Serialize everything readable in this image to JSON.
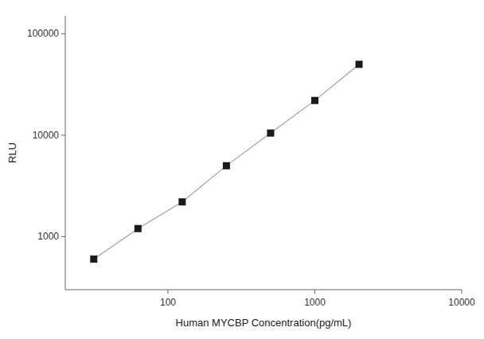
{
  "chart_data": {
    "type": "line",
    "xlabel": "Human MYCBP Concentration(pg/mL)",
    "ylabel": "RLU",
    "x": [
      31.25,
      62.5,
      125,
      250,
      500,
      1000,
      2000
    ],
    "series": [
      {
        "type": "line",
        "color": "#b0b0b0",
        "line_style": "solid",
        "values": [
          600,
          1200,
          2200,
          5000,
          10500,
          22000,
          50000
        ]
      },
      {
        "type": "scatter",
        "color": "#1a1a1a",
        "marker": "square",
        "values": [
          600,
          1200,
          2200,
          5000,
          10500,
          22000,
          50000
        ]
      }
    ],
    "xlim": [
      20,
      10000
    ],
    "ylim": [
      300,
      150000
    ],
    "xticks": [
      100,
      1000,
      10000
    ],
    "yticks": [
      1000,
      10000,
      100000
    ],
    "log": true,
    "grid": false
  }
}
